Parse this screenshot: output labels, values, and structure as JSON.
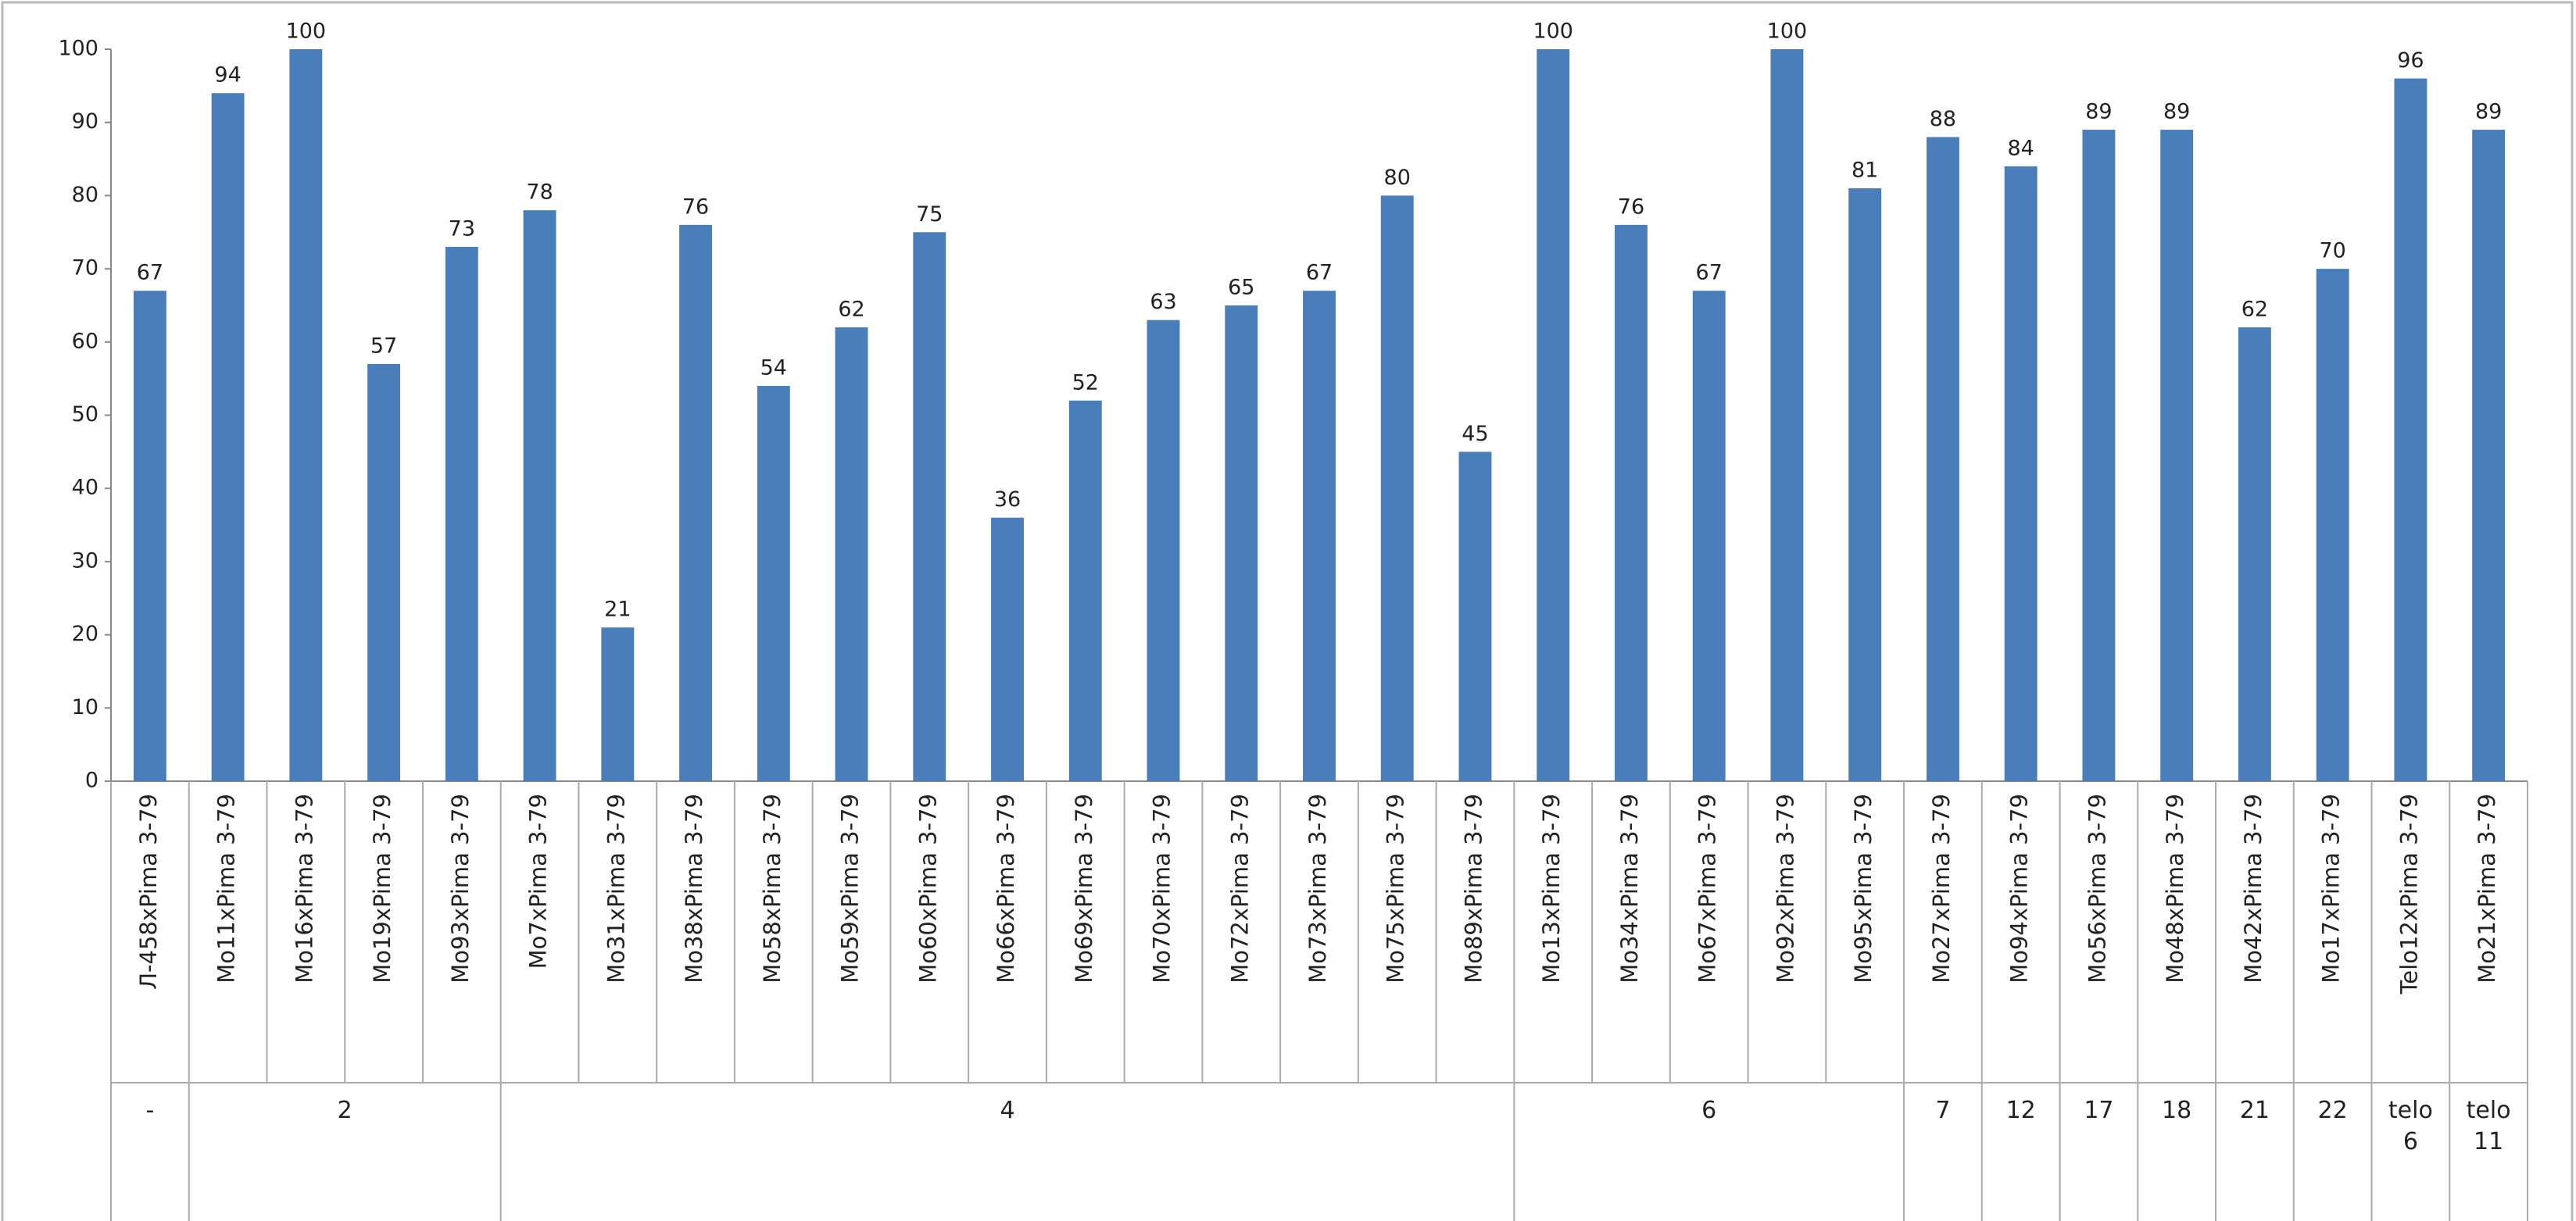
{
  "chart_data": {
    "type": "bar",
    "color": "#4a7ebb",
    "ylim": [
      0,
      100
    ],
    "yticks": [
      0,
      10,
      20,
      30,
      40,
      50,
      60,
      70,
      80,
      90,
      100
    ],
    "grid": false,
    "groups": [
      {
        "label": "-",
        "categories": [
          "Л-458xPima 3-79"
        ],
        "values": [
          67
        ]
      },
      {
        "label": "2",
        "categories": [
          "Mo11xPima 3-79",
          "Mo16xPima 3-79",
          "Mo19xPima 3-79",
          "Mo93xPima 3-79"
        ],
        "values": [
          94,
          100,
          57,
          73
        ]
      },
      {
        "label": "4",
        "categories": [
          "Mo7xPima 3-79",
          "Mo31xPima 3-79",
          "Mo38xPima 3-79",
          "Mo58xPima 3-79",
          "Mo59xPima 3-79",
          "Mo60xPima 3-79",
          "Mo66xPima 3-79",
          "Mo69xPima 3-79",
          "Mo70xPima 3-79",
          "Mo72xPima 3-79",
          "Mo73xPima 3-79",
          "Mo75xPima 3-79",
          "Mo89xPima 3-79"
        ],
        "values": [
          78,
          21,
          76,
          54,
          62,
          75,
          36,
          52,
          63,
          65,
          67,
          80,
          45
        ]
      },
      {
        "label": "6",
        "categories": [
          "Mo13xPima 3-79",
          "Mo34xPima 3-79",
          "Mo67xPima 3-79",
          "Mo92xPima 3-79",
          "Mo95xPima 3-79"
        ],
        "values": [
          100,
          76,
          67,
          100,
          81
        ]
      },
      {
        "label": "7",
        "categories": [
          "Mo27xPima 3-79"
        ],
        "values": [
          88
        ]
      },
      {
        "label": "12",
        "categories": [
          "Mo94xPima 3-79"
        ],
        "values": [
          84
        ]
      },
      {
        "label": "17",
        "categories": [
          "Mo56xPima 3-79"
        ],
        "values": [
          89
        ]
      },
      {
        "label": "18",
        "categories": [
          "Mo48xPima 3-79"
        ],
        "values": [
          89
        ]
      },
      {
        "label": "21",
        "categories": [
          "Mo42xPima 3-79"
        ],
        "values": [
          62
        ]
      },
      {
        "label": "22",
        "categories": [
          "Mo17xPima 3-79"
        ],
        "values": [
          70
        ]
      },
      {
        "label": "telo 6",
        "categories": [
          "Telo12xPima 3-79"
        ],
        "values": [
          96
        ]
      },
      {
        "label": "telo 11",
        "categories": [
          "Mo21xPima 3-79"
        ],
        "values": [
          89
        ]
      }
    ]
  }
}
